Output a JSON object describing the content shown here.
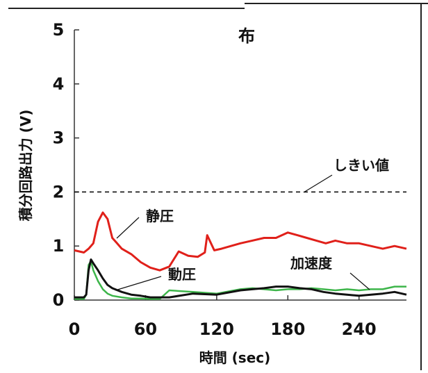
{
  "chart_data": {
    "type": "line",
    "title": "布",
    "xlabel": "時間 (sec)",
    "ylabel": "積分回路出力 (V)",
    "xlim": [
      0,
      280
    ],
    "ylim": [
      0,
      5
    ],
    "x_ticks": [
      0,
      60,
      120,
      180,
      240
    ],
    "y_ticks": [
      0,
      1,
      2,
      3,
      4,
      5
    ],
    "grid": false,
    "threshold": {
      "label": "しきい値",
      "value": 2,
      "style": "dashed",
      "color": "#000000"
    },
    "series": [
      {
        "name": "静圧",
        "color": "#e0201a",
        "x": [
          0,
          8,
          12,
          16,
          20,
          24,
          28,
          32,
          36,
          40,
          48,
          56,
          64,
          72,
          80,
          88,
          96,
          104,
          110,
          112,
          118,
          124,
          132,
          140,
          150,
          160,
          170,
          180,
          188,
          196,
          204,
          212,
          220,
          230,
          240,
          250,
          260,
          270,
          280
        ],
        "values": [
          0.92,
          0.88,
          0.95,
          1.05,
          1.45,
          1.62,
          1.5,
          1.15,
          1.05,
          0.95,
          0.85,
          0.7,
          0.6,
          0.55,
          0.62,
          0.9,
          0.82,
          0.8,
          0.88,
          1.2,
          0.92,
          0.95,
          1.0,
          1.05,
          1.1,
          1.15,
          1.15,
          1.25,
          1.2,
          1.15,
          1.1,
          1.05,
          1.1,
          1.05,
          1.05,
          1.0,
          0.95,
          1.0,
          0.95
        ]
      },
      {
        "name": "動圧",
        "color": "#111111",
        "x": [
          0,
          8,
          10,
          12,
          14,
          16,
          20,
          24,
          28,
          32,
          40,
          48,
          56,
          64,
          72,
          80,
          100,
          120,
          140,
          150,
          160,
          170,
          180,
          190,
          200,
          210,
          220,
          230,
          240,
          250,
          260,
          270,
          280
        ],
        "values": [
          0.05,
          0.05,
          0.1,
          0.55,
          0.75,
          0.68,
          0.55,
          0.4,
          0.28,
          0.22,
          0.15,
          0.1,
          0.08,
          0.05,
          0.05,
          0.05,
          0.12,
          0.1,
          0.18,
          0.2,
          0.22,
          0.25,
          0.25,
          0.22,
          0.2,
          0.15,
          0.12,
          0.1,
          0.08,
          0.1,
          0.12,
          0.15,
          0.1
        ]
      },
      {
        "name": "加速度",
        "color": "#3db54a",
        "x": [
          0,
          8,
          10,
          12,
          14,
          16,
          20,
          24,
          28,
          32,
          40,
          48,
          56,
          64,
          72,
          80,
          100,
          120,
          140,
          150,
          160,
          170,
          180,
          190,
          200,
          210,
          220,
          230,
          240,
          250,
          260,
          270,
          280
        ],
        "values": [
          0.02,
          0.02,
          0.1,
          0.65,
          0.72,
          0.55,
          0.35,
          0.2,
          0.12,
          0.08,
          0.05,
          0.03,
          0.03,
          0.02,
          0.02,
          0.18,
          0.15,
          0.12,
          0.2,
          0.22,
          0.2,
          0.18,
          0.2,
          0.2,
          0.22,
          0.2,
          0.18,
          0.2,
          0.18,
          0.2,
          0.2,
          0.25,
          0.25
        ]
      }
    ]
  }
}
